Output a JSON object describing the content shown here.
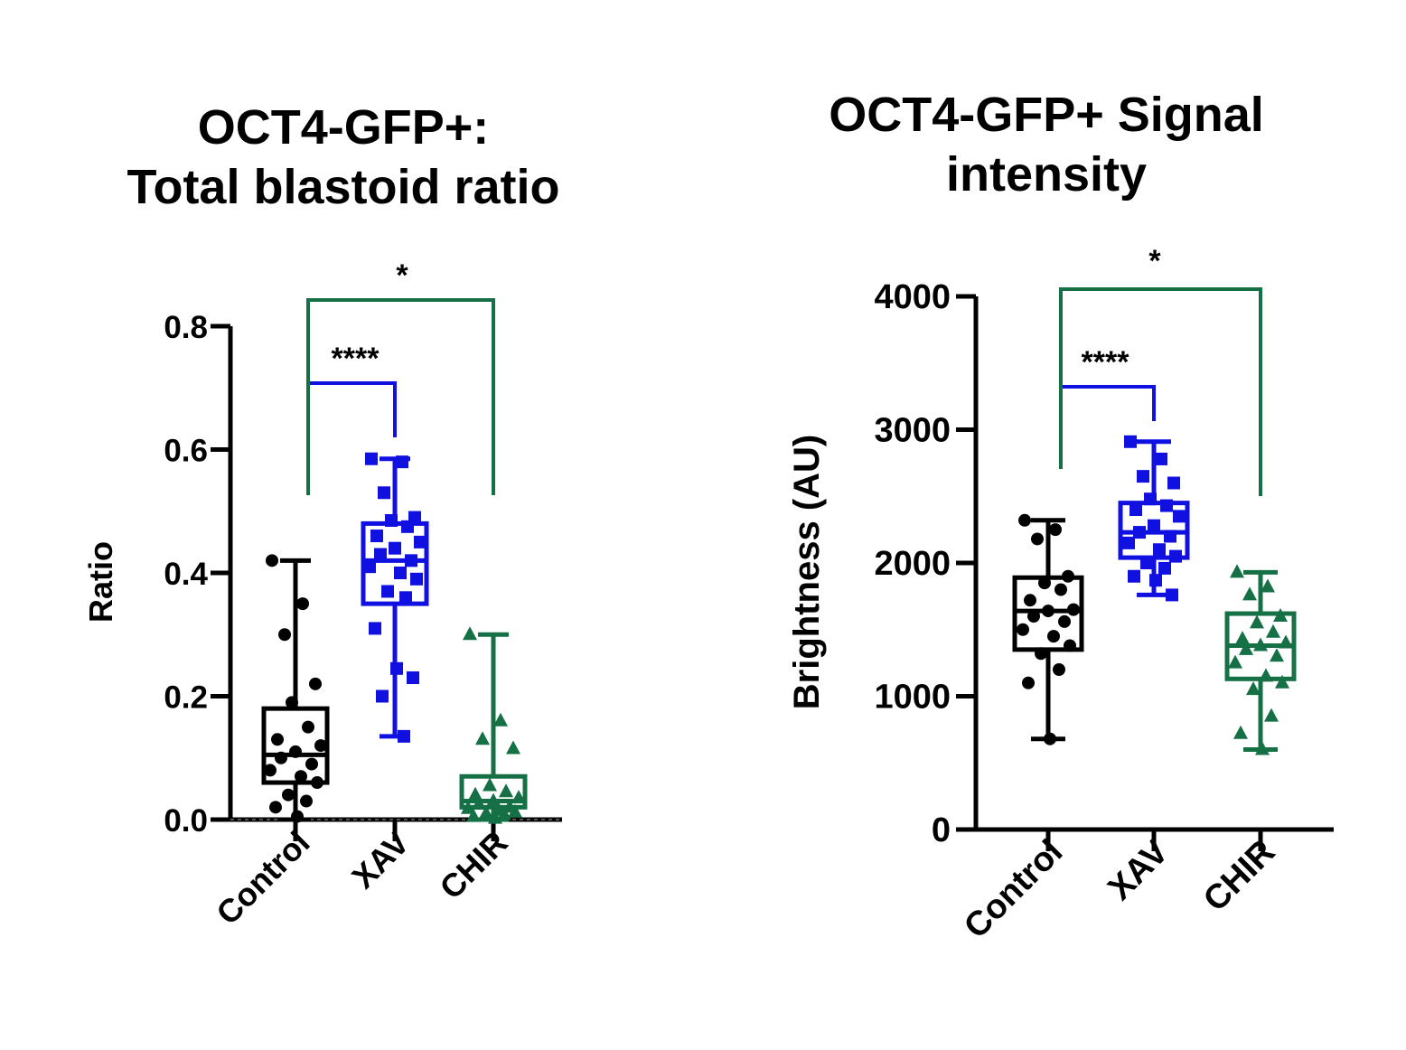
{
  "chart_data": [
    {
      "type": "box",
      "title_lines": [
        "OCT4-GFP+:",
        "Total blastoid ratio"
      ],
      "ylabel": "Ratio",
      "ylim": [
        0,
        0.8
      ],
      "yticks": [
        "0.0",
        "0.2",
        "0.4",
        "0.6",
        "0.8"
      ],
      "yticks_values": [
        0,
        0.2,
        0.4,
        0.6,
        0.8
      ],
      "categories": [
        "Control",
        "XAV",
        "CHIR"
      ],
      "series": [
        {
          "name": "Control",
          "color": "#000000",
          "marker": "circle",
          "box": {
            "min": 0.0,
            "q1": 0.06,
            "median": 0.105,
            "q3": 0.18,
            "max": 0.42
          },
          "points": [
            0.42,
            0.35,
            0.3,
            0.22,
            0.19,
            0.15,
            0.13,
            0.12,
            0.11,
            0.1,
            0.09,
            0.08,
            0.07,
            0.06,
            0.04,
            0.03,
            0.02,
            0.005
          ]
        },
        {
          "name": "XAV",
          "color": "#1010e0",
          "marker": "square",
          "box": {
            "min": 0.135,
            "q1": 0.35,
            "median": 0.42,
            "q3": 0.48,
            "max": 0.585
          },
          "points": [
            0.585,
            0.58,
            0.53,
            0.49,
            0.485,
            0.475,
            0.46,
            0.45,
            0.44,
            0.43,
            0.42,
            0.41,
            0.4,
            0.39,
            0.37,
            0.36,
            0.31,
            0.245,
            0.23,
            0.2,
            0.135
          ]
        },
        {
          "name": "CHIR",
          "color": "#157046",
          "marker": "triangle",
          "box": {
            "min": 0.0,
            "q1": 0.02,
            "median": 0.03,
            "q3": 0.07,
            "max": 0.3
          },
          "points": [
            0.3,
            0.16,
            0.13,
            0.115,
            0.055,
            0.045,
            0.04,
            0.035,
            0.03,
            0.025,
            0.02,
            0.018,
            0.015,
            0.012,
            0.01,
            0.008,
            0.005,
            0.002
          ]
        }
      ],
      "brackets": [
        {
          "label": "****",
          "from": "Control",
          "to": "XAV",
          "color": "#1010e0"
        },
        {
          "label": "*",
          "from": "Control",
          "to": "CHIR",
          "color": "#157046"
        }
      ]
    },
    {
      "type": "box",
      "title_lines": [
        "OCT4-GFP+ Signal",
        "intensity"
      ],
      "ylabel": "Brightness (AU)",
      "ylim": [
        0,
        4000
      ],
      "yticks": [
        "0",
        "1000",
        "2000",
        "3000",
        "4000"
      ],
      "yticks_values": [
        0,
        1000,
        2000,
        3000,
        4000
      ],
      "categories": [
        "Control",
        "XAV",
        "CHIR"
      ],
      "series": [
        {
          "name": "Control",
          "color": "#000000",
          "marker": "circle",
          "box": {
            "min": 680,
            "q1": 1350,
            "median": 1640,
            "q3": 1890,
            "max": 2320
          },
          "points": [
            2320,
            2250,
            2180,
            1900,
            1850,
            1800,
            1720,
            1650,
            1640,
            1600,
            1560,
            1500,
            1450,
            1380,
            1320,
            1200,
            1100,
            680
          ]
        },
        {
          "name": "XAV",
          "color": "#1010e0",
          "marker": "square",
          "box": {
            "min": 1760,
            "q1": 2040,
            "median": 2230,
            "q3": 2450,
            "max": 2910
          },
          "points": [
            2910,
            2780,
            2650,
            2600,
            2480,
            2430,
            2400,
            2350,
            2280,
            2230,
            2200,
            2150,
            2100,
            2050,
            2000,
            1960,
            1900,
            1870,
            1760
          ]
        },
        {
          "name": "CHIR",
          "color": "#157046",
          "marker": "triangle",
          "box": {
            "min": 600,
            "q1": 1130,
            "median": 1380,
            "q3": 1620,
            "max": 1930
          },
          "points": [
            1930,
            1820,
            1760,
            1600,
            1550,
            1480,
            1430,
            1400,
            1380,
            1350,
            1300,
            1250,
            1150,
            1100,
            1050,
            850,
            720,
            600
          ]
        }
      ],
      "brackets": [
        {
          "label": "****",
          "from": "Control",
          "to": "XAV",
          "color": "#1010e0"
        },
        {
          "label": "*",
          "from": "Control",
          "to": "CHIR",
          "color": "#157046"
        }
      ]
    }
  ]
}
